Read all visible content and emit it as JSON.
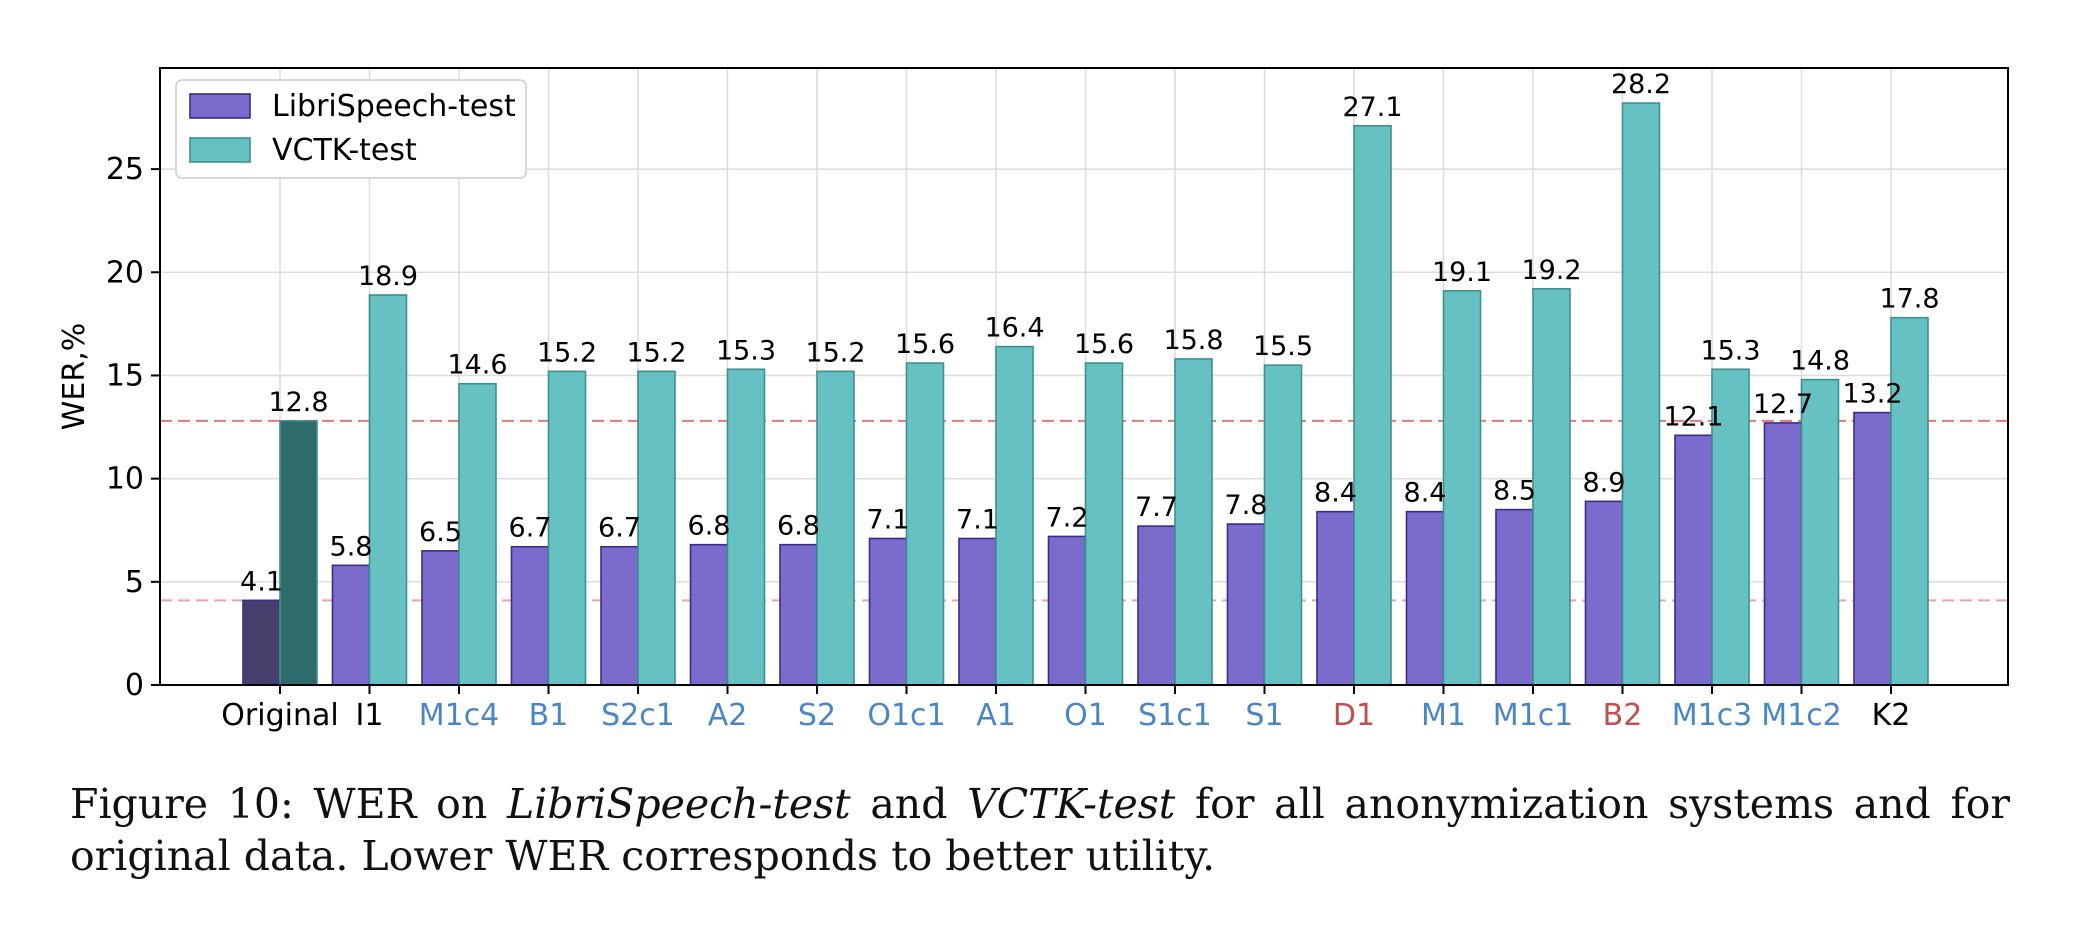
{
  "chart_data": {
    "type": "bar",
    "ylabel": "WER,%",
    "ylim": [
      0,
      30
    ],
    "yticks": [
      0,
      5,
      10,
      15,
      20,
      25
    ],
    "grid": true,
    "legend_position": "top-left",
    "categories": [
      "Original",
      "I1",
      "M1c4",
      "B1",
      "S2c1",
      "A2",
      "S2",
      "O1c1",
      "A1",
      "O1",
      "S1c1",
      "S1",
      "D1",
      "M1",
      "M1c1",
      "B2",
      "M1c3",
      "M1c2",
      "K2"
    ],
    "category_colors": [
      "#000000",
      "#000000",
      "#4a86c5",
      "#4a86c5",
      "#4a86c5",
      "#4a86c5",
      "#4a86c5",
      "#4a86c5",
      "#4a86c5",
      "#4a86c5",
      "#4a86c5",
      "#4a86c5",
      "#c0504d",
      "#4a86c5",
      "#4a86c5",
      "#c0504d",
      "#4a86c5",
      "#4a86c5",
      "#000000"
    ],
    "series": [
      {
        "name": "LibriSpeech-test",
        "color": "#7b6bcd",
        "edge": "#3d2a8c",
        "highlight_color": "#463f6e",
        "values": [
          4.1,
          5.8,
          6.5,
          6.7,
          6.7,
          6.8,
          6.8,
          7.1,
          7.1,
          7.2,
          7.7,
          7.8,
          8.4,
          8.4,
          8.5,
          8.9,
          12.1,
          12.7,
          13.2
        ]
      },
      {
        "name": "VCTK-test",
        "color": "#66c2c2",
        "edge": "#3e8f8f",
        "highlight_color": "#2e6b6b",
        "values": [
          12.8,
          18.9,
          14.6,
          15.2,
          15.2,
          15.3,
          15.2,
          15.6,
          16.4,
          15.6,
          15.8,
          15.5,
          27.1,
          19.1,
          19.2,
          28.2,
          15.3,
          14.8,
          17.8
        ]
      }
    ],
    "reference_lines": [
      {
        "value": 12.8,
        "color": "#e07b72"
      },
      {
        "value": 4.1,
        "color": "#f0a0a8"
      }
    ]
  },
  "caption": {
    "prefix": "Figure 10: WER on ",
    "dataset_a": "LibriSpeech-test",
    "mid": " and ",
    "dataset_b": "VCTK-test",
    "suffix": " for all anonymization systems and for original data. Lower WER corresponds to better utility."
  }
}
